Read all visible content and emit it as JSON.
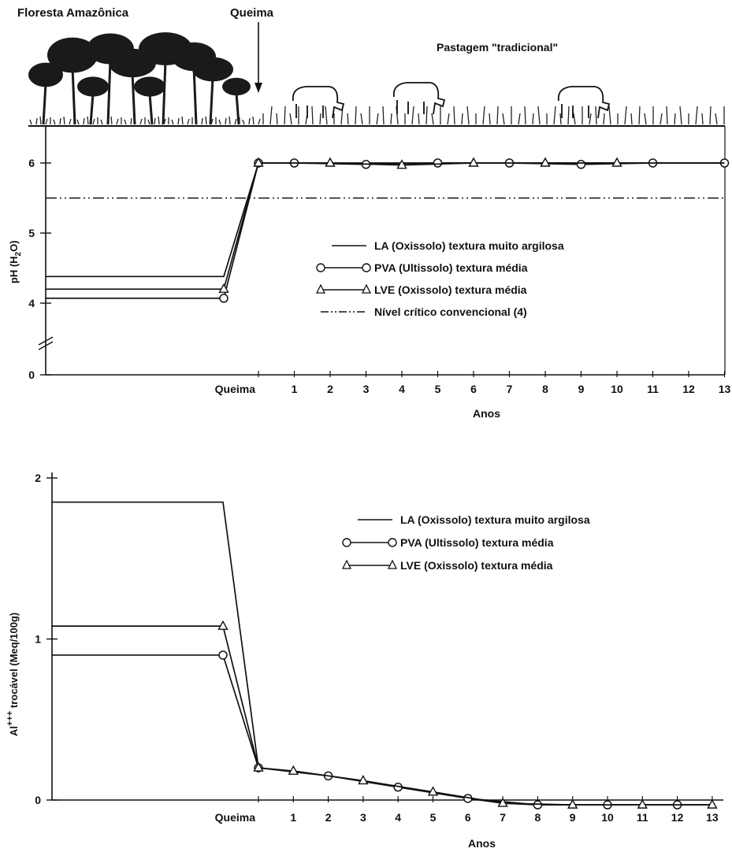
{
  "header": {
    "forest_label": "Floresta Amazônica",
    "burn_label": "Queima",
    "pasture_label": "Pastagem \"tradicional\""
  },
  "colors": {
    "ink": "#111111",
    "tree": "#1a1a1a",
    "grass": "#222222"
  },
  "chart_data": [
    {
      "type": "line",
      "ylabel": "pH (H2O)",
      "ylabel_parts": {
        "base": "pH (H",
        "sub": "2",
        "tail": "O)"
      },
      "xlabel": "Anos",
      "x_ticks": [
        "Queima",
        "1",
        "2",
        "3",
        "4",
        "5",
        "6",
        "7",
        "8",
        "9",
        "10",
        "11",
        "12",
        "13"
      ],
      "y_ticks": [
        "0",
        "4",
        "5",
        "6"
      ],
      "axis_break": true,
      "ylim": [
        3.8,
        6.2
      ],
      "pre_burn_x": -1,
      "series": [
        {
          "name": "LA (Oxissolo) textura muito argilosa",
          "marker": "none",
          "x": [
            -10,
            -1,
            0,
            13
          ],
          "y": [
            4.38,
            4.38,
            6.0,
            6.0
          ]
        },
        {
          "name": "PVA (Ultissolo) textura média",
          "marker": "circle",
          "x": [
            -10,
            -1,
            0,
            1,
            3,
            5,
            7,
            9,
            11,
            13
          ],
          "y": [
            4.07,
            4.07,
            6.0,
            6.0,
            5.98,
            6.0,
            6.0,
            5.98,
            6.0,
            6.0
          ]
        },
        {
          "name": "LVE (Oxissolo) textura média",
          "marker": "triangle",
          "x": [
            -10,
            -1,
            0,
            2,
            4,
            6,
            8,
            10
          ],
          "y": [
            4.2,
            4.2,
            6.0,
            6.0,
            5.97,
            6.0,
            6.0,
            6.0
          ]
        },
        {
          "name": "Nível crítico convencional (4)",
          "marker": "dashdot",
          "x": [
            -10,
            13
          ],
          "y": [
            5.5,
            5.5
          ]
        }
      ]
    },
    {
      "type": "line",
      "ylabel": "Al+++ trocável (Meq/100g)",
      "ylabel_parts": {
        "base": "Al",
        "sup": "+++",
        "tail": " trocável  (Meq/100g)"
      },
      "xlabel": "Anos",
      "x_ticks": [
        "Queima",
        "1",
        "2",
        "3",
        "4",
        "5",
        "6",
        "7",
        "8",
        "9",
        "10",
        "11",
        "12",
        "13"
      ],
      "y_ticks": [
        "0",
        "1",
        "2"
      ],
      "ylim": [
        0,
        2
      ],
      "pre_burn_x": -1,
      "series": [
        {
          "name": "LA (Oxissolo) textura muito argilosa",
          "marker": "none",
          "x": [
            -10,
            -1,
            0,
            1,
            2,
            3,
            4,
            5,
            6,
            7,
            8,
            9,
            10,
            11,
            12,
            13
          ],
          "y": [
            1.85,
            1.85,
            0.2,
            0.18,
            0.15,
            0.12,
            0.08,
            0.05,
            0.01,
            -0.02,
            -0.03,
            -0.03,
            -0.03,
            -0.03,
            -0.03,
            -0.03
          ]
        },
        {
          "name": "PVA (Ultissolo) textura média",
          "marker": "circle",
          "x": [
            -10,
            -1,
            0,
            2,
            4,
            6,
            8,
            10,
            12
          ],
          "y": [
            0.9,
            0.9,
            0.2,
            0.15,
            0.08,
            0.01,
            -0.03,
            -0.03,
            -0.03
          ]
        },
        {
          "name": "LVE (Oxissolo) textura média",
          "marker": "triangle",
          "x": [
            -10,
            -1,
            0,
            1,
            3,
            5,
            7,
            9,
            11,
            13
          ],
          "y": [
            1.08,
            1.08,
            0.2,
            0.18,
            0.12,
            0.05,
            -0.02,
            -0.03,
            -0.03,
            -0.03
          ]
        }
      ]
    }
  ]
}
